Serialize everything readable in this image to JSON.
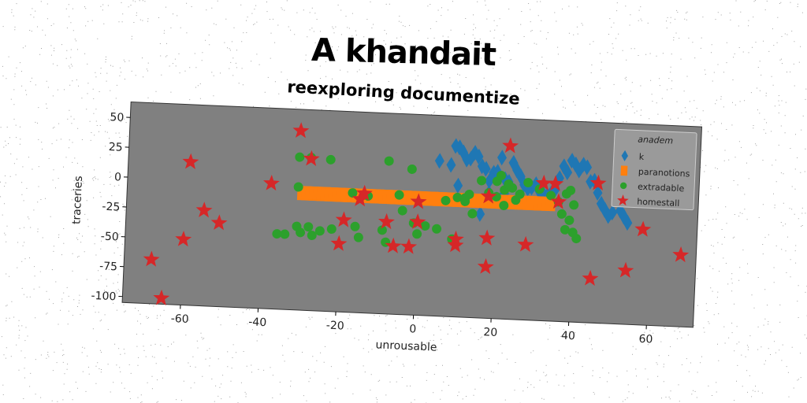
{
  "title": "A khandait",
  "chart_data": {
    "type": "scatter",
    "title": "reexploring documentize",
    "xlabel": "unrousable",
    "ylabel": "traceries",
    "xlim": [
      -75,
      72
    ],
    "ylim": [
      -105,
      63
    ],
    "xticks": [
      -60,
      -40,
      -20,
      0,
      20,
      40,
      60
    ],
    "yticks": [
      50,
      25,
      0,
      -25,
      -50,
      -75,
      -100
    ],
    "xtick_labels": [
      "-60",
      "-40",
      "-20",
      "0",
      "20",
      "40",
      "60"
    ],
    "ytick_labels": [
      "50",
      "25",
      "0",
      "-25",
      "-50",
      "-75",
      "-100"
    ],
    "grid": false,
    "plot_background": "#808080",
    "legend": {
      "title": "anadem",
      "position": "top-right"
    },
    "series": [
      {
        "name": "k",
        "marker": "diamond",
        "color": "#1f77b4",
        "points": [
          [
            5,
            25
          ],
          [
            8,
            22
          ],
          [
            9,
            38
          ],
          [
            10,
            37
          ],
          [
            11,
            33
          ],
          [
            12,
            27
          ],
          [
            13,
            28
          ],
          [
            14,
            33
          ],
          [
            15,
            30
          ],
          [
            16,
            22
          ],
          [
            17,
            20
          ],
          [
            18,
            10
          ],
          [
            19,
            17
          ],
          [
            20,
            18
          ],
          [
            21,
            30
          ],
          [
            22,
            12
          ],
          [
            23,
            10
          ],
          [
            24,
            26
          ],
          [
            25,
            20
          ],
          [
            26,
            15
          ],
          [
            27,
            8
          ],
          [
            28,
            5
          ],
          [
            29,
            6
          ],
          [
            30,
            9
          ],
          [
            31,
            3
          ],
          [
            32,
            1
          ],
          [
            33,
            0
          ],
          [
            34,
            2
          ],
          [
            35,
            5
          ],
          [
            36,
            15
          ],
          [
            37,
            25
          ],
          [
            38,
            20
          ],
          [
            39,
            30
          ],
          [
            40,
            27
          ],
          [
            41,
            22
          ],
          [
            42,
            27
          ],
          [
            43,
            25
          ],
          [
            44,
            13
          ],
          [
            45,
            14
          ],
          [
            46,
            4
          ],
          [
            47,
            -5
          ],
          [
            48,
            -10
          ],
          [
            49,
            -15
          ],
          [
            50,
            -12
          ],
          [
            52,
            -10
          ],
          [
            53,
            -15
          ],
          [
            54,
            -20
          ],
          [
            16,
            -18
          ],
          [
            18,
            0
          ],
          [
            20,
            -5
          ],
          [
            22,
            0
          ],
          [
            10,
            5
          ]
        ]
      },
      {
        "name": "paranotions",
        "marker": "square",
        "color": "#ff7f0e",
        "points": [
          [
            -30,
            -7
          ],
          [
            -29,
            -7
          ],
          [
            -28,
            -7
          ],
          [
            -27,
            -7
          ],
          [
            -26,
            -7
          ],
          [
            -25,
            -7
          ],
          [
            -24,
            -7
          ],
          [
            -23,
            -7
          ],
          [
            -22,
            -7
          ],
          [
            -21,
            -7
          ],
          [
            -20,
            -7
          ],
          [
            -19,
            -7
          ],
          [
            -18,
            -7
          ],
          [
            -17,
            -7
          ],
          [
            -16,
            -7
          ],
          [
            -15,
            -7
          ],
          [
            -14,
            -7
          ],
          [
            -13,
            -7
          ],
          [
            -12,
            -7
          ],
          [
            -11,
            -7
          ],
          [
            -10,
            -7
          ],
          [
            -9,
            -7
          ],
          [
            -8,
            -7
          ],
          [
            -7,
            -7
          ],
          [
            -6,
            -7
          ],
          [
            -5,
            -7
          ],
          [
            -4,
            -7
          ],
          [
            -3,
            -7
          ],
          [
            -2,
            -7
          ],
          [
            -1,
            -7
          ],
          [
            0,
            -7
          ],
          [
            1,
            -7
          ],
          [
            2,
            -7
          ],
          [
            3,
            -7
          ],
          [
            4,
            -7
          ],
          [
            5,
            -7
          ],
          [
            6,
            -7
          ],
          [
            7,
            -7
          ],
          [
            8,
            -7
          ],
          [
            9,
            -7
          ],
          [
            10,
            -7
          ],
          [
            11,
            -7
          ],
          [
            12,
            -7
          ],
          [
            13,
            -7
          ],
          [
            14,
            -7
          ],
          [
            15,
            -7
          ],
          [
            16,
            -7
          ],
          [
            17,
            -7
          ],
          [
            18,
            -7
          ],
          [
            19,
            -7
          ],
          [
            20,
            -7
          ],
          [
            21,
            -7
          ],
          [
            22,
            -7
          ],
          [
            23,
            -7
          ],
          [
            24,
            -7
          ],
          [
            25,
            -7
          ],
          [
            26,
            -7
          ],
          [
            27,
            -7
          ],
          [
            28,
            -7
          ],
          [
            29,
            -7
          ],
          [
            30,
            -7
          ],
          [
            31,
            -7
          ],
          [
            32,
            -7
          ],
          [
            33,
            -7
          ],
          [
            34,
            -7
          ]
        ]
      },
      {
        "name": "extradable",
        "marker": "circle",
        "color": "#2ca02c",
        "points": [
          [
            -31,
            -2
          ],
          [
            -31,
            23
          ],
          [
            -28,
            23
          ],
          [
            -23,
            22
          ],
          [
            -31,
            -35
          ],
          [
            -30,
            -40
          ],
          [
            -28,
            -35
          ],
          [
            -27,
            -42
          ],
          [
            -34,
            -42
          ],
          [
            -36,
            -42
          ],
          [
            -25,
            -38
          ],
          [
            -22,
            -36
          ],
          [
            -17,
            -5
          ],
          [
            -16,
            -33
          ],
          [
            -15,
            -42
          ],
          [
            -13,
            -7
          ],
          [
            -9,
            -35
          ],
          [
            -8,
            -45
          ],
          [
            -8,
            23
          ],
          [
            -5,
            -5
          ],
          [
            -4,
            -18
          ],
          [
            -2,
            17
          ],
          [
            -1,
            -28
          ],
          [
            0,
            -37
          ],
          [
            2,
            -30
          ],
          [
            5,
            -32
          ],
          [
            7,
            -8
          ],
          [
            9,
            -40
          ],
          [
            10,
            -5
          ],
          [
            12,
            -5
          ],
          [
            14,
            -18
          ],
          [
            16,
            10
          ],
          [
            18,
            0
          ],
          [
            20,
            -3
          ],
          [
            22,
            3
          ],
          [
            23,
            8
          ],
          [
            24,
            5
          ],
          [
            25,
            -5
          ],
          [
            26,
            0
          ],
          [
            28,
            10
          ],
          [
            31,
            5
          ],
          [
            34,
            0
          ],
          [
            36,
            -5
          ],
          [
            37,
            -15
          ],
          [
            38,
            -28
          ],
          [
            39,
            -20
          ],
          [
            40,
            -30
          ],
          [
            38,
            2
          ],
          [
            39,
            5
          ],
          [
            40,
            -7
          ],
          [
            41,
            -35
          ],
          [
            20,
            10
          ],
          [
            21,
            15
          ],
          [
            22,
            -10
          ],
          [
            12,
            -8
          ],
          [
            13,
            -2
          ]
        ]
      },
      {
        "name": "homestall",
        "marker": "star",
        "color": "#d62728",
        "points": [
          [
            -68,
            -68
          ],
          [
            -65,
            -100
          ],
          [
            -60,
            -50
          ],
          [
            -59,
            15
          ],
          [
            -55,
            -25
          ],
          [
            -51,
            -35
          ],
          [
            -38,
            0
          ],
          [
            -31,
            45
          ],
          [
            -28,
            22
          ],
          [
            -20,
            -48
          ],
          [
            -19,
            -28
          ],
          [
            -15,
            -10
          ],
          [
            -14,
            -5
          ],
          [
            -8,
            -28
          ],
          [
            -6,
            -48
          ],
          [
            -2,
            -48
          ],
          [
            0,
            -27
          ],
          [
            0,
            -10
          ],
          [
            10,
            -45
          ],
          [
            10,
            -40
          ],
          [
            18,
            -38
          ],
          [
            18,
            -62
          ],
          [
            18,
            -3
          ],
          [
            23,
            40
          ],
          [
            28,
            -42
          ],
          [
            32,
            10
          ],
          [
            35,
            10
          ],
          [
            36,
            -5
          ],
          [
            45,
            -68
          ],
          [
            46,
            12
          ],
          [
            54,
            -60
          ],
          [
            58,
            -25
          ],
          [
            68,
            -45
          ]
        ]
      }
    ]
  }
}
